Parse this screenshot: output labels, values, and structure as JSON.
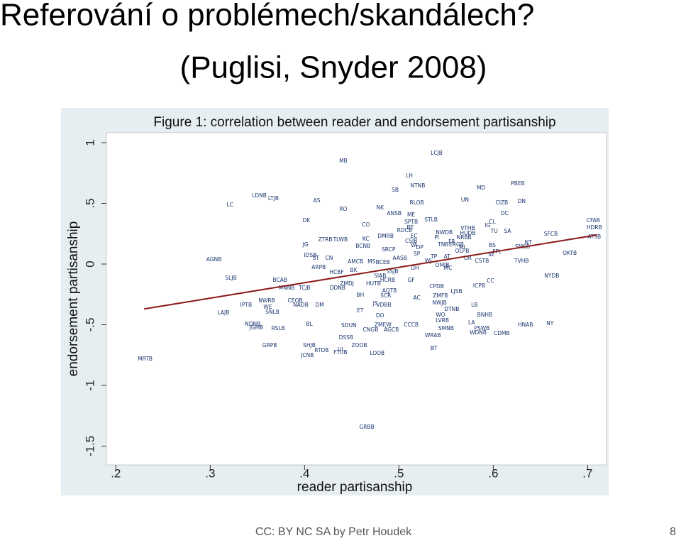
{
  "slide": {
    "title": "Referování o problémech/skandálech?",
    "subtitle": "(Puglisi, Snyder 2008)",
    "footer": "CC: BY NC SA by Petr Houdek",
    "page_number": "8"
  },
  "chart_data": {
    "type": "scatter",
    "title": "Figure 1: correlation between reader and endorsement partisanship",
    "x_label": "reader partisanship",
    "y_label": "endorsement partisanship",
    "xlim": [
      0.19,
      0.72
    ],
    "ylim": [
      -1.655,
      1.082
    ],
    "xticks": [
      {
        "value": 0.2,
        "label": ".2"
      },
      {
        "value": 0.3,
        "label": ".3"
      },
      {
        "value": 0.4,
        "label": ".4"
      },
      {
        "value": 0.5,
        "label": ".5"
      },
      {
        "value": 0.6,
        "label": ".6"
      },
      {
        "value": 0.7,
        "label": ".7"
      }
    ],
    "yticks": [
      {
        "value": -1.5,
        "label": "-1.5"
      },
      -1,
      {
        "value": -0.5,
        "label": "-.5"
      },
      0,
      {
        "value": 0.5,
        "label": ".5"
      },
      1
    ],
    "grid": false,
    "series": [
      {
        "color": "#1a3570",
        "labels": [
          "LCJB",
          "MB",
          "LH",
          "NTNB",
          "SB",
          "PBEB",
          "MD",
          "UN",
          "CIZB",
          "DN",
          "LDNB",
          "LTJB",
          "LC",
          "AS",
          "RO",
          "RLOB",
          "NK",
          "ME",
          "ANSB",
          "STLB",
          "DC",
          "CFAB",
          "HDRB",
          "ATSB",
          "SFCB",
          "OKTB",
          "NYDB",
          "NY",
          "HNAB",
          "TVHB",
          "CDMB",
          "BT",
          "WRAB",
          "SMNB",
          "LVRB",
          "WO",
          "DTNB",
          "NWJB",
          "LB",
          "BNHB",
          "PSWB",
          "WDNB",
          "LA",
          "LJSB",
          "ICPB",
          "CC",
          "ZMFB",
          "AC",
          "CPDB",
          "GF",
          "DH",
          "CSTB",
          "OR",
          "SE",
          "TP",
          "AT",
          "MC",
          "SA",
          "TU",
          "NT",
          "SMSB",
          "PI",
          "EC",
          "RDCB",
          "BE",
          "CO",
          "DMRB",
          "SP",
          "AASB",
          "BCEB",
          "SSJB",
          "HCRB",
          "HUTB",
          "AQTB",
          "SCR",
          "JS",
          "VDBB",
          "BH",
          "ET",
          "DO",
          "ZMEW",
          "CCCB",
          "AGCB",
          "CNGB",
          "SDUN",
          "DSSB",
          "ZOOB",
          "UI",
          "FTUB",
          "LOOB",
          "RTDB",
          "SHJB",
          "JCNB",
          "GRPB",
          "GRBB",
          "MRTB",
          "JGMB",
          "NDNB",
          "RSLB",
          "LAJB",
          "IPTB",
          "NWRB",
          "WE",
          "SNLB",
          "BL",
          "SLJB",
          "BCAB",
          "MNNB",
          "TCJB",
          "CEOB",
          "NADB",
          "DM",
          "AGNB",
          "IDSB",
          "ST",
          "CN",
          "ARPB",
          "JG",
          "ZTRB",
          "DK",
          "HCBF",
          "ZMDJ",
          "DDNB",
          "BK",
          "AMCB",
          "MS",
          "BCNB",
          "TLWB",
          "KC",
          "IG",
          "CL",
          "NWDB",
          "VTHB",
          "HUDB",
          "NRBB",
          "ERGB",
          "MI",
          "BS",
          "FPL",
          "OLPB",
          "TNB",
          "FR",
          "DP",
          "VA",
          "CSJB",
          "SRCP",
          "SPTB",
          "WJ",
          "OMJB",
          "SIAB"
        ],
        "x": [
          0.54,
          0.441,
          0.511,
          0.52,
          0.496,
          0.626,
          0.587,
          0.57,
          0.609,
          0.63,
          0.352,
          0.367,
          0.321,
          0.413,
          0.441,
          0.519,
          0.48,
          0.513,
          0.495,
          0.534,
          0.612,
          0.706,
          0.707,
          0.707,
          0.661,
          0.681,
          0.662,
          0.66,
          0.634,
          0.63,
          0.609,
          0.537,
          0.536,
          0.55,
          0.546,
          0.544,
          0.556,
          0.543,
          0.58,
          0.591,
          0.588,
          0.584,
          0.577,
          0.561,
          0.585,
          0.597,
          0.544,
          0.519,
          0.54,
          0.513,
          0.517,
          0.588,
          0.573,
          0.598,
          0.537,
          0.551,
          0.552,
          0.615,
          0.601,
          0.637,
          0.631,
          0.54,
          0.516,
          0.506,
          0.512,
          0.465,
          0.486,
          0.519,
          0.501,
          0.483,
          0.493,
          0.488,
          0.473,
          0.49,
          0.486,
          0.475,
          0.484,
          0.459,
          0.459,
          0.48,
          0.483,
          0.513,
          0.492,
          0.47,
          0.447,
          0.444,
          0.458,
          0.438,
          0.438,
          0.477,
          0.418,
          0.405,
          0.403,
          0.363,
          0.466,
          0.231,
          0.349,
          0.345,
          0.372,
          0.314,
          0.338,
          0.36,
          0.361,
          0.366,
          0.405,
          0.322,
          0.374,
          0.381,
          0.4,
          0.39,
          0.396,
          0.416,
          0.304,
          0.406,
          0.412,
          0.426,
          0.415,
          0.401,
          0.422,
          0.402,
          0.434,
          0.445,
          0.435,
          0.452,
          0.454,
          0.471,
          0.462,
          0.438,
          0.465,
          0.594,
          0.599,
          0.548,
          0.573,
          0.573,
          0.569,
          0.561,
          0.567,
          0.599,
          0.604,
          0.567,
          0.547,
          0.556,
          0.522,
          0.516,
          0.513,
          0.489,
          0.513,
          0.531,
          0.546,
          0.48
        ],
        "values": [
          0.912,
          0.848,
          0.725,
          0.643,
          0.608,
          0.661,
          0.626,
          0.526,
          0.503,
          0.515,
          0.561,
          0.538,
          0.485,
          0.52,
          0.45,
          0.503,
          0.462,
          0.404,
          0.415,
          0.363,
          0.415,
          0.357,
          0.298,
          0.222,
          0.246,
          0.088,
          -0.099,
          -0.491,
          -0.503,
          0.023,
          -0.573,
          -0.696,
          -0.591,
          -0.532,
          -0.468,
          -0.421,
          -0.374,
          -0.322,
          -0.339,
          -0.421,
          -0.532,
          -0.567,
          -0.485,
          -0.228,
          -0.181,
          -0.14,
          -0.263,
          -0.281,
          -0.187,
          -0.135,
          -0.035,
          0.023,
          0.047,
          0.076,
          0.058,
          0.058,
          -0.035,
          0.269,
          0.269,
          0.175,
          0.14,
          0.216,
          0.228,
          0.275,
          0.298,
          0.322,
          0.228,
          0.082,
          0.047,
          0.012,
          -0.064,
          -0.135,
          -0.164,
          -0.222,
          -0.263,
          -0.327,
          -0.339,
          -0.257,
          -0.386,
          -0.427,
          -0.503,
          -0.503,
          -0.544,
          -0.544,
          -0.509,
          -0.608,
          -0.673,
          -0.708,
          -0.731,
          -0.737,
          -0.713,
          -0.673,
          -0.754,
          -0.673,
          -1.345,
          -0.784,
          -0.526,
          -0.497,
          -0.532,
          -0.404,
          -0.339,
          -0.304,
          -0.357,
          -0.398,
          -0.497,
          -0.117,
          -0.135,
          -0.199,
          -0.199,
          -0.304,
          -0.339,
          -0.339,
          0.035,
          0.07,
          0.047,
          0.047,
          -0.029,
          0.158,
          0.199,
          0.357,
          -0.07,
          -0.164,
          -0.199,
          -0.053,
          0.018,
          0.018,
          0.146,
          0.199,
          0.205,
          0.316,
          0.345,
          0.257,
          0.292,
          0.251,
          0.216,
          0.158,
          0.135,
          0.152,
          0.099,
          0.105,
          0.158,
          0.181,
          0.135,
          0.152,
          0.187,
          0.117,
          0.345,
          0.023,
          -0.012,
          -0.099
        ]
      }
    ],
    "fit_line": {
      "color": "#8b1a1a",
      "x": [
        0.23,
        0.71
      ],
      "values": [
        -0.37,
        0.24
      ]
    }
  }
}
